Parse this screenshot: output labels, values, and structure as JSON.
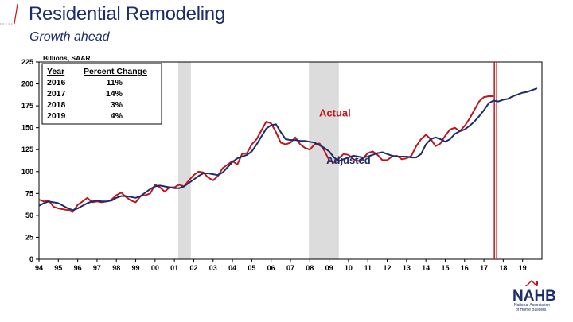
{
  "slide": {
    "title": "Residential Remodeling",
    "subtitle": "Growth ahead"
  },
  "logo": {
    "name": "NAHB",
    "subtext_lines": [
      "National Association",
      "of Home Builders"
    ]
  },
  "colors": {
    "title": "#1b2d6b",
    "actual": "#c0161c",
    "adjusted": "#1b2d6b",
    "recession": "#dcdcdc",
    "forecast_marker": "#c0161c"
  },
  "chart_data": {
    "type": "line",
    "unit_label": "Billions, SAAR",
    "x_tick_labels": [
      "94",
      "95",
      "96",
      "97",
      "98",
      "99",
      "00",
      "01",
      "02",
      "03",
      "04",
      "05",
      "06",
      "07",
      "08",
      "09",
      "10",
      "11",
      "12",
      "13",
      "14",
      "15",
      "16",
      "17",
      "18",
      "19"
    ],
    "xlim": [
      1994,
      2020
    ],
    "ylim": [
      0,
      225
    ],
    "y_ticks": [
      0,
      25,
      50,
      75,
      100,
      125,
      150,
      175,
      200,
      225
    ],
    "recession_shading": [
      [
        2001.2,
        2001.85
      ],
      [
        2007.95,
        2009.5
      ]
    ],
    "forecast_start": 2017.6,
    "annotations": [
      {
        "text": "Actual",
        "series": "actual",
        "x": 2009.3,
        "y": 163
      },
      {
        "text": "Adjusted",
        "series": "adjusted",
        "x": 2010.0,
        "y": 109
      }
    ],
    "table": {
      "headers": [
        "Year",
        "Percent Change"
      ],
      "rows": [
        [
          "2016",
          "11%"
        ],
        [
          "2017",
          "14%"
        ],
        [
          "2018",
          "3%"
        ],
        [
          "2019",
          "4%"
        ]
      ]
    },
    "series": [
      {
        "name": "Actual",
        "x": [
          1994.0,
          1994.25,
          1994.5,
          1994.75,
          1995.0,
          1995.25,
          1995.5,
          1995.75,
          1996.0,
          1996.25,
          1996.5,
          1996.75,
          1997.0,
          1997.25,
          1997.5,
          1997.75,
          1998.0,
          1998.25,
          1998.5,
          1998.75,
          1999.0,
          1999.25,
          1999.5,
          1999.75,
          2000.0,
          2000.25,
          2000.5,
          2000.75,
          2001.0,
          2001.25,
          2001.5,
          2001.75,
          2002.0,
          2002.25,
          2002.5,
          2002.75,
          2003.0,
          2003.25,
          2003.5,
          2003.75,
          2004.0,
          2004.25,
          2004.5,
          2004.75,
          2005.0,
          2005.25,
          2005.5,
          2005.75,
          2006.0,
          2006.25,
          2006.5,
          2006.75,
          2007.0,
          2007.25,
          2007.5,
          2007.75,
          2008.0,
          2008.25,
          2008.5,
          2008.75,
          2009.0,
          2009.25,
          2009.5,
          2009.75,
          2010.0,
          2010.25,
          2010.5,
          2010.75,
          2011.0,
          2011.25,
          2011.5,
          2011.75,
          2012.0,
          2012.25,
          2012.5,
          2012.75,
          2013.0,
          2013.25,
          2013.5,
          2013.75,
          2014.0,
          2014.25,
          2014.5,
          2014.75,
          2015.0,
          2015.25,
          2015.5,
          2015.75,
          2016.0,
          2016.25,
          2016.5,
          2016.75,
          2017.0,
          2017.25,
          2017.5
        ],
        "y": [
          68,
          66,
          67,
          60,
          58,
          57,
          56,
          54,
          62,
          66,
          70,
          65,
          66,
          65,
          66,
          68,
          73,
          76,
          71,
          67,
          65,
          72,
          73,
          75,
          85,
          82,
          77,
          82,
          82,
          85,
          83,
          90,
          96,
          100,
          99,
          93,
          90,
          95,
          104,
          108,
          112,
          108,
          120,
          121,
          131,
          137,
          147,
          157,
          155,
          145,
          133,
          131,
          133,
          139,
          131,
          127,
          125,
          131,
          132,
          124,
          113,
          110,
          115,
          120,
          119,
          114,
          112,
          115,
          121,
          123,
          119,
          113,
          113,
          117,
          118,
          114,
          115,
          118,
          129,
          137,
          142,
          137,
          129,
          132,
          141,
          148,
          150,
          146,
          152,
          160,
          170,
          180,
          185,
          186,
          186
        ]
      },
      {
        "name": "Adjusted",
        "x": [
          1994.0,
          1994.25,
          1994.5,
          1994.75,
          1995.0,
          1995.25,
          1995.5,
          1995.75,
          1996.0,
          1996.25,
          1996.5,
          1996.75,
          1997.0,
          1997.25,
          1997.5,
          1997.75,
          1998.0,
          1998.25,
          1998.5,
          1998.75,
          1999.0,
          1999.25,
          1999.5,
          1999.75,
          2000.0,
          2000.25,
          2000.5,
          2000.75,
          2001.0,
          2001.25,
          2001.5,
          2001.75,
          2002.0,
          2002.25,
          2002.5,
          2002.75,
          2003.0,
          2003.25,
          2003.5,
          2003.75,
          2004.0,
          2004.25,
          2004.5,
          2004.75,
          2005.0,
          2005.25,
          2005.5,
          2005.75,
          2006.0,
          2006.25,
          2006.5,
          2006.75,
          2007.0,
          2007.25,
          2007.5,
          2007.75,
          2008.0,
          2008.25,
          2008.5,
          2008.75,
          2009.0,
          2009.25,
          2009.5,
          2009.75,
          2010.0,
          2010.25,
          2010.5,
          2010.75,
          2011.0,
          2011.25,
          2011.5,
          2011.75,
          2012.0,
          2012.25,
          2012.5,
          2012.75,
          2013.0,
          2013.25,
          2013.5,
          2013.75,
          2014.0,
          2014.25,
          2014.5,
          2014.75,
          2015.0,
          2015.25,
          2015.5,
          2015.75,
          2016.0,
          2016.25,
          2016.5,
          2016.75,
          2017.0,
          2017.25,
          2017.5,
          2017.75,
          2018.0,
          2018.25,
          2018.5,
          2018.75,
          2019.0,
          2019.25,
          2019.5,
          2019.75
        ],
        "y": [
          61,
          64,
          66,
          65,
          64,
          61,
          58,
          56,
          58,
          61,
          64,
          66,
          67,
          66,
          66,
          67,
          70,
          72,
          72,
          71,
          70,
          72,
          76,
          80,
          83,
          84,
          83,
          82,
          81,
          81,
          83,
          87,
          91,
          95,
          98,
          98,
          97,
          96,
          99,
          105,
          111,
          115,
          117,
          119,
          123,
          131,
          140,
          149,
          153,
          154,
          145,
          137,
          136,
          136,
          135,
          135,
          134,
          133,
          130,
          127,
          123,
          116,
          112,
          114,
          116,
          118,
          117,
          116,
          117,
          119,
          121,
          122,
          120,
          118,
          117,
          117,
          117,
          116,
          116,
          120,
          131,
          137,
          139,
          137,
          134,
          137,
          143,
          146,
          148,
          152,
          157,
          163,
          170,
          178,
          181,
          180,
          182,
          183,
          186,
          188,
          190,
          191,
          193,
          195
        ]
      }
    ]
  }
}
